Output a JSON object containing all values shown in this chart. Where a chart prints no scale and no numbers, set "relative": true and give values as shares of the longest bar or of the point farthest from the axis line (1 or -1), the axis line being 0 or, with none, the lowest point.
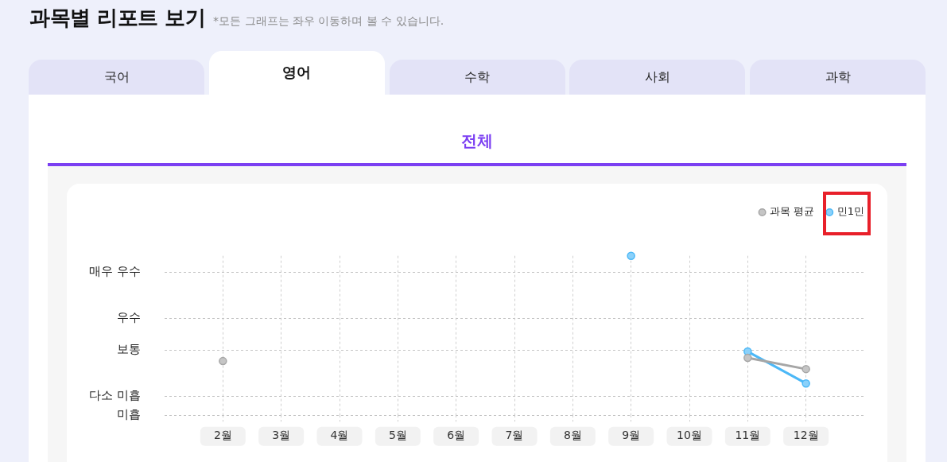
{
  "chart_data": {
    "type": "line",
    "title": "과목별 리포트 보기",
    "subtitle": "*모든 그래프는 좌우 이동하며 볼 수 있습니다.",
    "annotations": [
      "국어",
      "영어",
      "수학",
      "사회",
      "과학",
      "전체"
    ],
    "categories": [
      null,
      "2월",
      "3월",
      "4월",
      "5월",
      "6월",
      "7월",
      "8월",
      "9월",
      "10월",
      "11월",
      "12월",
      null
    ],
    "relative": true,
    "series": [
      {
        "name": "과목 평균",
        "color": "#a6a6a6",
        "values": [
          null,
          0.34,
          null,
          null,
          null,
          null,
          null,
          null,
          null,
          null,
          0.36,
          0.29,
          null
        ]
      },
      {
        "name": "민1민",
        "color": "#4cb8f7",
        "values": [
          null,
          null,
          null,
          null,
          null,
          null,
          null,
          null,
          1,
          null,
          0.4,
          0.2,
          null
        ]
      }
    ],
    "ref_lines": [
      {
        "axis": "y",
        "value": 0.9,
        "label": "매우 우수"
      },
      {
        "axis": "y",
        "value": 0.61,
        "label": "우수"
      },
      {
        "axis": "y",
        "value": 0.41,
        "label": "보통"
      },
      {
        "axis": "y",
        "value": 0.12,
        "label": "다소 미흡"
      },
      {
        "axis": "y",
        "value": 0,
        "label": "미흡"
      }
    ],
    "grid": "x",
    "legend": "top right",
    "marker": "circle",
    "line_style": "solid"
  }
}
